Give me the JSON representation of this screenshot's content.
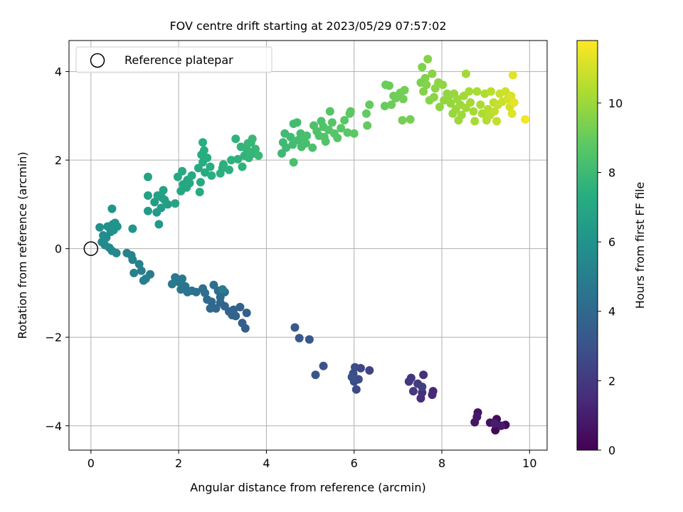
{
  "chart_data": {
    "type": "scatter",
    "title": "FOV centre drift starting at 2023/05/29 07:57:02",
    "xlabel": "Angular distance from reference (arcmin)",
    "ylabel": "Rotation from reference (arcmin)",
    "xlim": [
      -0.5,
      10.4
    ],
    "ylim": [
      -4.55,
      4.7
    ],
    "xticks": [
      0,
      2,
      4,
      6,
      8,
      10
    ],
    "yticks": [
      -4,
      -2,
      0,
      2,
      4
    ],
    "xtick_labels": [
      "0",
      "2",
      "4",
      "6",
      "8",
      "10"
    ],
    "ytick_labels": [
      "−4",
      "−2",
      "0",
      "2",
      "4"
    ],
    "grid": true,
    "legend": {
      "placement": "top-left",
      "entries": [
        "Reference platepar"
      ]
    },
    "reference_point": {
      "name": "Reference platepar",
      "x": 0,
      "y": 0
    },
    "colorbar": {
      "label": "Hours from first FF file",
      "colormap": "viridis",
      "range": [
        0,
        11.8
      ],
      "ticks": [
        0,
        2,
        4,
        6,
        8,
        10
      ],
      "tick_labels": [
        "0",
        "2",
        "4",
        "6",
        "8",
        "10"
      ]
    },
    "points": [
      {
        "x": 9.3,
        "y": -4.0,
        "h": 0.1
      },
      {
        "x": 9.22,
        "y": -4.1,
        "h": 0.2
      },
      {
        "x": 9.45,
        "y": -3.98,
        "h": 0.3
      },
      {
        "x": 9.25,
        "y": -3.85,
        "h": 0.4
      },
      {
        "x": 9.1,
        "y": -3.93,
        "h": 0.5
      },
      {
        "x": 8.82,
        "y": -3.7,
        "h": 0.6
      },
      {
        "x": 8.75,
        "y": -3.92,
        "h": 0.7
      },
      {
        "x": 8.8,
        "y": -3.8,
        "h": 0.8
      },
      {
        "x": 9.35,
        "y": -4.0,
        "h": 0.9
      },
      {
        "x": 9.2,
        "y": -3.95,
        "h": 1.0
      },
      {
        "x": 7.8,
        "y": -3.22,
        "h": 1.3
      },
      {
        "x": 7.78,
        "y": -3.3,
        "h": 1.4
      },
      {
        "x": 7.52,
        "y": -3.38,
        "h": 1.5
      },
      {
        "x": 7.55,
        "y": -3.25,
        "h": 1.6
      },
      {
        "x": 7.58,
        "y": -2.85,
        "h": 1.7
      },
      {
        "x": 7.3,
        "y": -2.92,
        "h": 1.8
      },
      {
        "x": 7.25,
        "y": -3.0,
        "h": 1.9
      },
      {
        "x": 7.35,
        "y": -3.22,
        "h": 2.0
      },
      {
        "x": 7.45,
        "y": -3.05,
        "h": 2.1
      },
      {
        "x": 7.55,
        "y": -3.12,
        "h": 2.2
      },
      {
        "x": 6.35,
        "y": -2.75,
        "h": 2.4
      },
      {
        "x": 6.15,
        "y": -2.7,
        "h": 2.5
      },
      {
        "x": 6.05,
        "y": -3.18,
        "h": 2.6
      },
      {
        "x": 6.02,
        "y": -2.68,
        "h": 2.7
      },
      {
        "x": 5.98,
        "y": -2.82,
        "h": 2.75
      },
      {
        "x": 6.0,
        "y": -3.0,
        "h": 2.8
      },
      {
        "x": 6.1,
        "y": -2.95,
        "h": 2.85
      },
      {
        "x": 5.95,
        "y": -2.9,
        "h": 2.9
      },
      {
        "x": 5.3,
        "y": -2.65,
        "h": 3.0
      },
      {
        "x": 5.12,
        "y": -2.85,
        "h": 3.1
      },
      {
        "x": 4.98,
        "y": -2.05,
        "h": 3.2
      },
      {
        "x": 4.75,
        "y": -2.02,
        "h": 3.25
      },
      {
        "x": 4.65,
        "y": -1.78,
        "h": 3.3
      },
      {
        "x": 3.52,
        "y": -1.8,
        "h": 3.5
      },
      {
        "x": 3.45,
        "y": -1.68,
        "h": 3.55
      },
      {
        "x": 3.55,
        "y": -1.45,
        "h": 3.6
      },
      {
        "x": 3.4,
        "y": -1.32,
        "h": 3.65
      },
      {
        "x": 3.3,
        "y": -1.52,
        "h": 3.7
      },
      {
        "x": 3.25,
        "y": -1.38,
        "h": 3.72
      },
      {
        "x": 3.15,
        "y": -1.42,
        "h": 3.75
      },
      {
        "x": 3.22,
        "y": -1.5,
        "h": 3.78
      },
      {
        "x": 3.05,
        "y": -1.3,
        "h": 3.8
      },
      {
        "x": 2.95,
        "y": -1.22,
        "h": 3.85
      },
      {
        "x": 2.85,
        "y": -1.35,
        "h": 3.9
      },
      {
        "x": 2.75,
        "y": -1.2,
        "h": 3.95
      },
      {
        "x": 2.72,
        "y": -1.35,
        "h": 4.0
      },
      {
        "x": 2.65,
        "y": -1.15,
        "h": 4.05
      },
      {
        "x": 2.95,
        "y": -1.1,
        "h": 4.1
      },
      {
        "x": 3.05,
        "y": -0.98,
        "h": 4.15
      },
      {
        "x": 2.9,
        "y": -0.95,
        "h": 4.2
      },
      {
        "x": 2.8,
        "y": -0.82,
        "h": 4.25
      },
      {
        "x": 2.6,
        "y": -1.0,
        "h": 4.3
      },
      {
        "x": 2.55,
        "y": -0.9,
        "h": 4.35
      },
      {
        "x": 2.4,
        "y": -0.98,
        "h": 4.4
      },
      {
        "x": 2.3,
        "y": -0.95,
        "h": 4.45
      },
      {
        "x": 2.2,
        "y": -0.98,
        "h": 4.5
      },
      {
        "x": 2.15,
        "y": -0.85,
        "h": 4.55
      },
      {
        "x": 2.05,
        "y": -0.92,
        "h": 4.6
      },
      {
        "x": 2.0,
        "y": -0.75,
        "h": 4.65
      },
      {
        "x": 1.92,
        "y": -0.65,
        "h": 4.7
      },
      {
        "x": 1.85,
        "y": -0.8,
        "h": 4.75
      },
      {
        "x": 2.08,
        "y": -0.68,
        "h": 4.8
      },
      {
        "x": 3.0,
        "y": -0.92,
        "h": 4.85
      },
      {
        "x": 1.35,
        "y": -0.58,
        "h": 4.9
      },
      {
        "x": 1.2,
        "y": -0.72,
        "h": 4.95
      },
      {
        "x": 1.15,
        "y": -0.5,
        "h": 5.0
      },
      {
        "x": 1.25,
        "y": -0.68,
        "h": 5.05
      },
      {
        "x": 1.1,
        "y": -0.35,
        "h": 5.1
      },
      {
        "x": 0.98,
        "y": -0.55,
        "h": 5.15
      },
      {
        "x": 0.95,
        "y": -0.25,
        "h": 5.2
      },
      {
        "x": 0.82,
        "y": -0.1,
        "h": 5.25
      },
      {
        "x": 0.92,
        "y": -0.15,
        "h": 5.3
      },
      {
        "x": 0.58,
        "y": -0.1,
        "h": 5.4
      },
      {
        "x": 0.48,
        "y": -0.05,
        "h": 5.45
      },
      {
        "x": 0.42,
        "y": 0.02,
        "h": 5.5
      },
      {
        "x": 0.32,
        "y": 0.08,
        "h": 5.55
      },
      {
        "x": 0.25,
        "y": 0.15,
        "h": 5.6
      },
      {
        "x": 0.35,
        "y": 0.25,
        "h": 5.65
      },
      {
        "x": 0.28,
        "y": 0.3,
        "h": 5.7
      },
      {
        "x": 0.45,
        "y": 0.38,
        "h": 5.75
      },
      {
        "x": 0.2,
        "y": 0.48,
        "h": 5.8
      },
      {
        "x": 0.38,
        "y": 0.5,
        "h": 5.85
      },
      {
        "x": 0.5,
        "y": 0.55,
        "h": 5.9
      },
      {
        "x": 0.52,
        "y": 0.42,
        "h": 5.95
      },
      {
        "x": 0.6,
        "y": 0.5,
        "h": 6.0
      },
      {
        "x": 0.55,
        "y": 0.58,
        "h": 6.05
      },
      {
        "x": 0.48,
        "y": 0.9,
        "h": 6.1
      },
      {
        "x": 0.95,
        "y": 0.45,
        "h": 6.15
      },
      {
        "x": 1.55,
        "y": 0.55,
        "h": 6.3
      },
      {
        "x": 1.5,
        "y": 0.82,
        "h": 6.35
      },
      {
        "x": 1.3,
        "y": 0.85,
        "h": 6.4
      },
      {
        "x": 1.6,
        "y": 0.92,
        "h": 6.45
      },
      {
        "x": 1.45,
        "y": 1.05,
        "h": 6.5
      },
      {
        "x": 1.68,
        "y": 1.1,
        "h": 6.55
      },
      {
        "x": 1.75,
        "y": 1.0,
        "h": 6.6
      },
      {
        "x": 1.62,
        "y": 1.15,
        "h": 6.65
      },
      {
        "x": 1.3,
        "y": 1.2,
        "h": 6.7
      },
      {
        "x": 1.52,
        "y": 1.2,
        "h": 6.72
      },
      {
        "x": 1.65,
        "y": 1.32,
        "h": 6.75
      },
      {
        "x": 1.3,
        "y": 1.62,
        "h": 6.8
      },
      {
        "x": 1.92,
        "y": 1.02,
        "h": 6.85
      },
      {
        "x": 2.05,
        "y": 1.3,
        "h": 6.9
      },
      {
        "x": 2.1,
        "y": 1.45,
        "h": 6.95
      },
      {
        "x": 2.18,
        "y": 1.38,
        "h": 7.0
      },
      {
        "x": 2.2,
        "y": 1.55,
        "h": 7.02
      },
      {
        "x": 2.25,
        "y": 1.48,
        "h": 7.05
      },
      {
        "x": 1.98,
        "y": 1.62,
        "h": 7.08
      },
      {
        "x": 2.08,
        "y": 1.75,
        "h": 7.1
      },
      {
        "x": 2.3,
        "y": 1.65,
        "h": 7.12
      },
      {
        "x": 2.45,
        "y": 1.82,
        "h": 7.15
      },
      {
        "x": 2.5,
        "y": 1.5,
        "h": 7.18
      },
      {
        "x": 2.48,
        "y": 1.28,
        "h": 7.2
      },
      {
        "x": 2.6,
        "y": 1.72,
        "h": 7.22
      },
      {
        "x": 2.55,
        "y": 1.95,
        "h": 7.25
      },
      {
        "x": 2.52,
        "y": 2.12,
        "h": 7.28
      },
      {
        "x": 2.65,
        "y": 2.05,
        "h": 7.3
      },
      {
        "x": 2.58,
        "y": 2.22,
        "h": 7.32
      },
      {
        "x": 2.55,
        "y": 2.4,
        "h": 7.35
      },
      {
        "x": 2.72,
        "y": 1.85,
        "h": 7.38
      },
      {
        "x": 2.75,
        "y": 1.65,
        "h": 7.4
      },
      {
        "x": 2.95,
        "y": 1.7,
        "h": 7.42
      },
      {
        "x": 3.0,
        "y": 1.82,
        "h": 7.45
      },
      {
        "x": 3.02,
        "y": 1.9,
        "h": 7.48
      },
      {
        "x": 3.15,
        "y": 1.78,
        "h": 7.5
      },
      {
        "x": 3.2,
        "y": 2.0,
        "h": 7.52
      },
      {
        "x": 3.35,
        "y": 2.02,
        "h": 7.55
      },
      {
        "x": 3.3,
        "y": 2.48,
        "h": 7.58
      },
      {
        "x": 3.45,
        "y": 1.85,
        "h": 7.6
      },
      {
        "x": 3.5,
        "y": 2.1,
        "h": 7.62
      },
      {
        "x": 3.42,
        "y": 2.3,
        "h": 7.65
      },
      {
        "x": 3.55,
        "y": 2.25,
        "h": 7.68
      },
      {
        "x": 3.6,
        "y": 2.05,
        "h": 7.7
      },
      {
        "x": 3.65,
        "y": 2.4,
        "h": 7.72
      },
      {
        "x": 3.72,
        "y": 2.15,
        "h": 7.75
      },
      {
        "x": 3.62,
        "y": 2.18,
        "h": 7.78
      },
      {
        "x": 3.58,
        "y": 2.38,
        "h": 7.8
      },
      {
        "x": 3.75,
        "y": 2.25,
        "h": 7.82
      },
      {
        "x": 3.82,
        "y": 2.1,
        "h": 7.85
      },
      {
        "x": 3.68,
        "y": 2.48,
        "h": 7.88
      },
      {
        "x": 4.35,
        "y": 2.15,
        "h": 7.95
      },
      {
        "x": 4.45,
        "y": 2.28,
        "h": 8.0
      },
      {
        "x": 4.38,
        "y": 2.4,
        "h": 8.02
      },
      {
        "x": 4.42,
        "y": 2.6,
        "h": 8.05
      },
      {
        "x": 4.55,
        "y": 2.52,
        "h": 8.08
      },
      {
        "x": 4.6,
        "y": 2.35,
        "h": 8.1
      },
      {
        "x": 4.62,
        "y": 2.82,
        "h": 8.12
      },
      {
        "x": 4.7,
        "y": 2.85,
        "h": 8.15
      },
      {
        "x": 4.72,
        "y": 2.45,
        "h": 8.18
      },
      {
        "x": 4.78,
        "y": 2.6,
        "h": 8.2
      },
      {
        "x": 4.8,
        "y": 2.3,
        "h": 8.22
      },
      {
        "x": 4.85,
        "y": 2.52,
        "h": 8.25
      },
      {
        "x": 4.9,
        "y": 2.38,
        "h": 8.28
      },
      {
        "x": 4.92,
        "y": 2.55,
        "h": 8.3
      },
      {
        "x": 4.62,
        "y": 1.95,
        "h": 8.32
      },
      {
        "x": 5.05,
        "y": 2.28,
        "h": 8.35
      },
      {
        "x": 5.08,
        "y": 2.78,
        "h": 8.38
      },
      {
        "x": 5.15,
        "y": 2.65,
        "h": 8.4
      },
      {
        "x": 5.2,
        "y": 2.55,
        "h": 8.42
      },
      {
        "x": 5.25,
        "y": 2.88,
        "h": 8.45
      },
      {
        "x": 5.3,
        "y": 2.75,
        "h": 8.48
      },
      {
        "x": 5.32,
        "y": 2.52,
        "h": 8.5
      },
      {
        "x": 5.35,
        "y": 2.42,
        "h": 8.52
      },
      {
        "x": 5.42,
        "y": 2.68,
        "h": 8.55
      },
      {
        "x": 5.45,
        "y": 3.1,
        "h": 8.58
      },
      {
        "x": 5.5,
        "y": 2.85,
        "h": 8.6
      },
      {
        "x": 5.55,
        "y": 2.6,
        "h": 8.62
      },
      {
        "x": 5.62,
        "y": 2.5,
        "h": 8.65
      },
      {
        "x": 5.7,
        "y": 2.72,
        "h": 8.68
      },
      {
        "x": 5.78,
        "y": 2.9,
        "h": 8.7
      },
      {
        "x": 5.85,
        "y": 2.62,
        "h": 8.72
      },
      {
        "x": 5.9,
        "y": 3.05,
        "h": 8.75
      },
      {
        "x": 5.92,
        "y": 3.1,
        "h": 8.78
      },
      {
        "x": 6.0,
        "y": 2.6,
        "h": 8.8
      },
      {
        "x": 6.28,
        "y": 3.05,
        "h": 8.9
      },
      {
        "x": 6.3,
        "y": 2.78,
        "h": 8.92
      },
      {
        "x": 6.35,
        "y": 3.25,
        "h": 8.95
      },
      {
        "x": 6.7,
        "y": 3.22,
        "h": 9.0
      },
      {
        "x": 6.72,
        "y": 3.7,
        "h": 9.05
      },
      {
        "x": 6.8,
        "y": 3.68,
        "h": 9.1
      },
      {
        "x": 6.85,
        "y": 3.25,
        "h": 9.12
      },
      {
        "x": 6.9,
        "y": 3.45,
        "h": 9.15
      },
      {
        "x": 6.95,
        "y": 3.4,
        "h": 9.18
      },
      {
        "x": 7.05,
        "y": 3.52,
        "h": 9.2
      },
      {
        "x": 7.12,
        "y": 3.38,
        "h": 9.22
      },
      {
        "x": 7.15,
        "y": 3.58,
        "h": 9.25
      },
      {
        "x": 7.1,
        "y": 2.9,
        "h": 9.28
      },
      {
        "x": 7.28,
        "y": 2.92,
        "h": 9.3
      },
      {
        "x": 7.52,
        "y": 3.75,
        "h": 9.4
      },
      {
        "x": 7.55,
        "y": 4.1,
        "h": 9.45
      },
      {
        "x": 7.62,
        "y": 3.85,
        "h": 9.5
      },
      {
        "x": 7.65,
        "y": 3.7,
        "h": 9.55
      },
      {
        "x": 7.58,
        "y": 3.55,
        "h": 9.58
      },
      {
        "x": 7.68,
        "y": 4.28,
        "h": 9.6
      },
      {
        "x": 7.72,
        "y": 3.35,
        "h": 9.62
      },
      {
        "x": 7.78,
        "y": 3.95,
        "h": 9.65
      },
      {
        "x": 7.82,
        "y": 3.42,
        "h": 9.68
      },
      {
        "x": 7.85,
        "y": 3.62,
        "h": 9.7
      },
      {
        "x": 7.92,
        "y": 3.75,
        "h": 9.72
      },
      {
        "x": 7.95,
        "y": 3.2,
        "h": 9.75
      },
      {
        "x": 8.02,
        "y": 3.7,
        "h": 9.78
      },
      {
        "x": 8.05,
        "y": 3.35,
        "h": 9.8
      },
      {
        "x": 8.12,
        "y": 3.5,
        "h": 9.82
      },
      {
        "x": 8.15,
        "y": 3.42,
        "h": 9.85
      },
      {
        "x": 8.2,
        "y": 3.28,
        "h": 9.88
      },
      {
        "x": 8.25,
        "y": 3.05,
        "h": 9.9
      },
      {
        "x": 8.28,
        "y": 3.5,
        "h": 9.92
      },
      {
        "x": 8.32,
        "y": 3.15,
        "h": 9.95
      },
      {
        "x": 8.35,
        "y": 3.38,
        "h": 9.98
      },
      {
        "x": 8.38,
        "y": 2.9,
        "h": 10.0
      },
      {
        "x": 8.42,
        "y": 3.25,
        "h": 10.02
      },
      {
        "x": 8.45,
        "y": 3.02,
        "h": 10.05
      },
      {
        "x": 8.5,
        "y": 3.45,
        "h": 10.08
      },
      {
        "x": 8.55,
        "y": 3.95,
        "h": 10.1
      },
      {
        "x": 8.55,
        "y": 3.18,
        "h": 10.12
      },
      {
        "x": 8.62,
        "y": 3.55,
        "h": 10.15
      },
      {
        "x": 8.65,
        "y": 3.3,
        "h": 10.18
      },
      {
        "x": 8.72,
        "y": 3.1,
        "h": 10.2
      },
      {
        "x": 8.75,
        "y": 2.88,
        "h": 10.22
      },
      {
        "x": 8.8,
        "y": 3.55,
        "h": 10.25
      },
      {
        "x": 8.88,
        "y": 3.25,
        "h": 10.28
      },
      {
        "x": 8.92,
        "y": 3.05,
        "h": 10.3
      },
      {
        "x": 8.98,
        "y": 3.5,
        "h": 10.35
      },
      {
        "x": 9.02,
        "y": 2.9,
        "h": 10.4
      },
      {
        "x": 9.05,
        "y": 3.15,
        "h": 10.45
      },
      {
        "x": 9.1,
        "y": 3.02,
        "h": 10.5
      },
      {
        "x": 9.12,
        "y": 3.55,
        "h": 10.55
      },
      {
        "x": 9.18,
        "y": 3.3,
        "h": 10.6
      },
      {
        "x": 9.2,
        "y": 3.1,
        "h": 10.65
      },
      {
        "x": 9.25,
        "y": 2.88,
        "h": 10.7
      },
      {
        "x": 9.28,
        "y": 3.25,
        "h": 10.75
      },
      {
        "x": 9.32,
        "y": 3.5,
        "h": 10.8
      },
      {
        "x": 9.38,
        "y": 3.32,
        "h": 10.85
      },
      {
        "x": 9.45,
        "y": 3.55,
        "h": 10.9
      },
      {
        "x": 9.5,
        "y": 3.38,
        "h": 11.0
      },
      {
        "x": 9.55,
        "y": 3.2,
        "h": 11.05
      },
      {
        "x": 9.58,
        "y": 3.45,
        "h": 11.1
      },
      {
        "x": 9.6,
        "y": 3.05,
        "h": 11.2
      },
      {
        "x": 9.62,
        "y": 3.92,
        "h": 11.3
      },
      {
        "x": 9.65,
        "y": 3.3,
        "h": 11.4
      },
      {
        "x": 9.9,
        "y": 2.92,
        "h": 11.6
      }
    ]
  }
}
